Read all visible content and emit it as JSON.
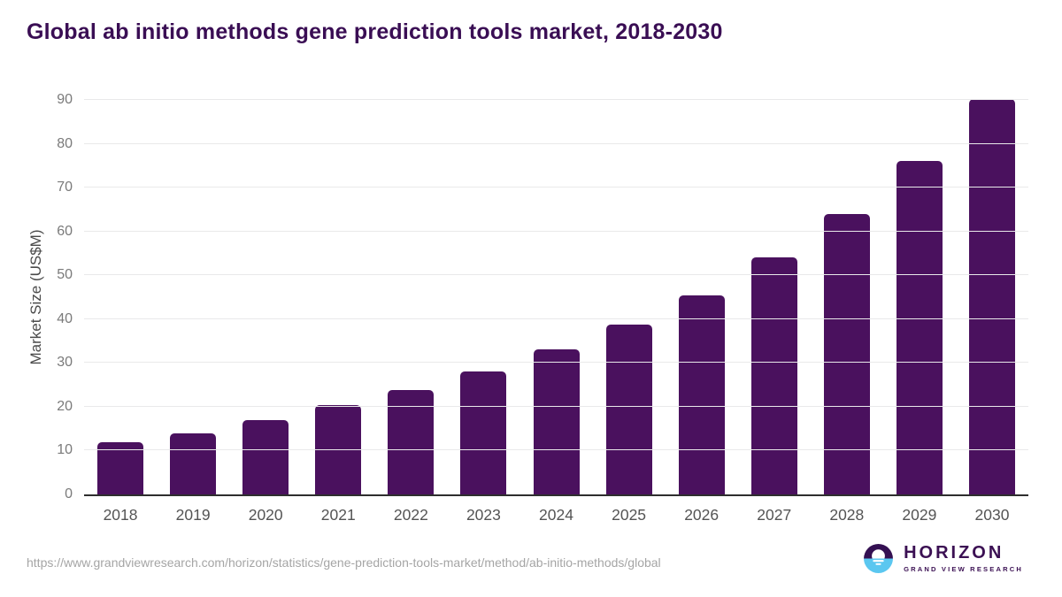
{
  "title": "Global ab initio methods gene prediction tools market, 2018-2030",
  "chart_data": {
    "type": "bar",
    "categories": [
      "2018",
      "2019",
      "2020",
      "2021",
      "2022",
      "2023",
      "2024",
      "2025",
      "2026",
      "2027",
      "2028",
      "2029",
      "2030"
    ],
    "values": [
      12.0,
      14.0,
      17.0,
      20.4,
      23.9,
      28.0,
      33.1,
      38.7,
      45.5,
      54.1,
      63.9,
      76.0,
      90.3
    ],
    "title": "Global ab initio methods gene prediction tools market, 2018-2030",
    "xlabel": "",
    "ylabel": "Market Size (US$M)",
    "ylim": [
      0,
      90
    ],
    "ytick_step": 10,
    "yticks": [
      0,
      10,
      20,
      30,
      40,
      50,
      60,
      70,
      80,
      90
    ],
    "grid": true,
    "legend": false
  },
  "colors": {
    "bar": "#4a115e",
    "title": "#3a0e54",
    "gridline": "#e9e9ea",
    "axis_line": "#2e2e2e",
    "ytick_label": "#7a7a7a",
    "xtick_label": "#545454",
    "url_text": "#a5a5a5",
    "logo_purple": "#341052",
    "logo_blue": "#5bc7f0"
  },
  "footer": {
    "source_url": "https://www.grandviewresearch.com/horizon/statistics/gene-prediction-tools-market/method/ab-initio-methods/global",
    "logo": {
      "wordmark": "HORIZON",
      "subtext": "GRAND VIEW RESEARCH"
    }
  }
}
